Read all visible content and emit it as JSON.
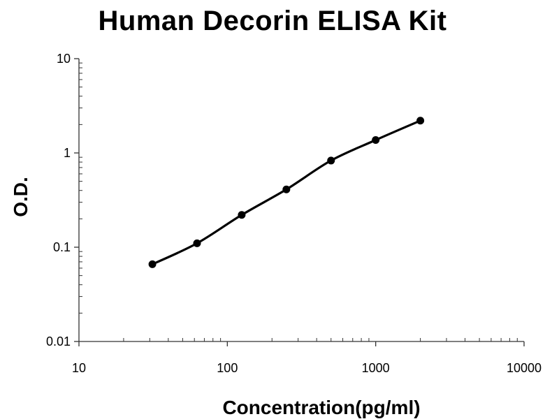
{
  "chart_data": {
    "type": "scatter",
    "title": "Human Decorin ELISA Kit",
    "xlabel": "Concentration(pg/ml)",
    "ylabel": "O.D.",
    "x_scale": "log",
    "y_scale": "log",
    "xlim": [
      10,
      10000
    ],
    "ylim": [
      0.01,
      10
    ],
    "x_ticks": [
      "10",
      "100",
      "1000",
      "10000"
    ],
    "y_ticks": [
      "0.01",
      "0.1",
      "1",
      "10"
    ],
    "grid": false,
    "legend": "none",
    "series": [
      {
        "marker_color": "#000000",
        "points": [
          {
            "x": 31.25,
            "y": 0.066
          },
          {
            "x": 62.5,
            "y": 0.11
          },
          {
            "x": 125,
            "y": 0.22
          },
          {
            "x": 250,
            "y": 0.41
          },
          {
            "x": 500,
            "y": 0.83
          },
          {
            "x": 1000,
            "y": 1.37
          },
          {
            "x": 2000,
            "y": 2.2
          }
        ],
        "fit_curve": "smooth"
      }
    ]
  }
}
